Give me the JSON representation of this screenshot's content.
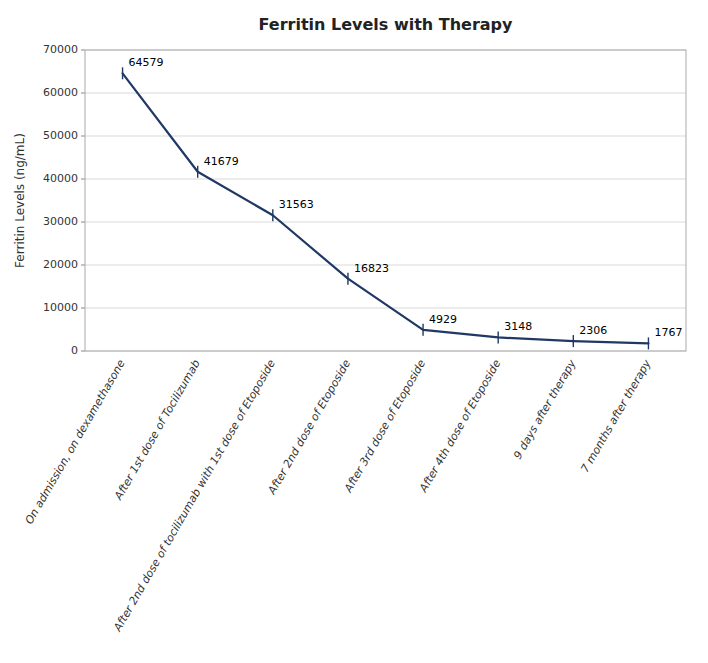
{
  "chart_data": {
    "type": "line",
    "title": "Ferritin Levels with Therapy",
    "ylabel": "Ferritin Levels (ng/mL)",
    "categories": [
      "On admission, on dexamethasone",
      "After 1st dose of Tocilizumab",
      "After 2nd dose of tocilizumab  with 1st dose of Etoposide",
      "After 2nd dose of Etoposide",
      "After 3rd dose of Etoposide",
      "After 4th dose of Etoposide",
      "9 days after therapy",
      "7 months after therapy"
    ],
    "values": [
      64579,
      41679,
      31563,
      16823,
      4929,
      3148,
      2306,
      1767
    ],
    "color": "#1F3864",
    "ylim": [
      0,
      70000
    ],
    "yticks": [
      0,
      10000,
      20000,
      30000,
      40000,
      50000,
      60000,
      70000
    ],
    "grid": true,
    "data_labels": true
  }
}
